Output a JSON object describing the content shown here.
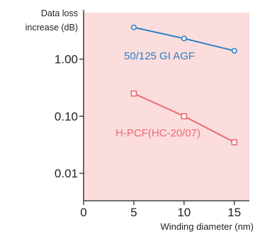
{
  "chart_data": {
    "type": "line",
    "title": "",
    "xlabel": "Winding diameter (nm)",
    "ylabel_lines": [
      "Data loss",
      "increase (dB)"
    ],
    "y_scale": "log",
    "xlim": [
      0,
      16.5
    ],
    "ylim": [
      0.0033,
      6.5
    ],
    "x_ticks": [
      0,
      5,
      10,
      15
    ],
    "x_tick_labels": [
      "0",
      "5",
      "10",
      "15"
    ],
    "y_ticks": [
      0.01,
      0.1,
      1.0
    ],
    "y_tick_labels": [
      "0.01",
      "0.10",
      "1.00"
    ],
    "background_color": "#fadddc",
    "grid": false,
    "series": [
      {
        "name": "50/125 GI AGF",
        "color": "#2c7fc4",
        "marker": "circle",
        "x": [
          5,
          10,
          15
        ],
        "y": [
          3.6,
          2.3,
          1.4
        ]
      },
      {
        "name": "H-PCF(HC-20/07)",
        "color": "#ec6a72",
        "marker": "square",
        "x": [
          5,
          10,
          15
        ],
        "y": [
          0.25,
          0.1,
          0.035
        ]
      }
    ]
  }
}
